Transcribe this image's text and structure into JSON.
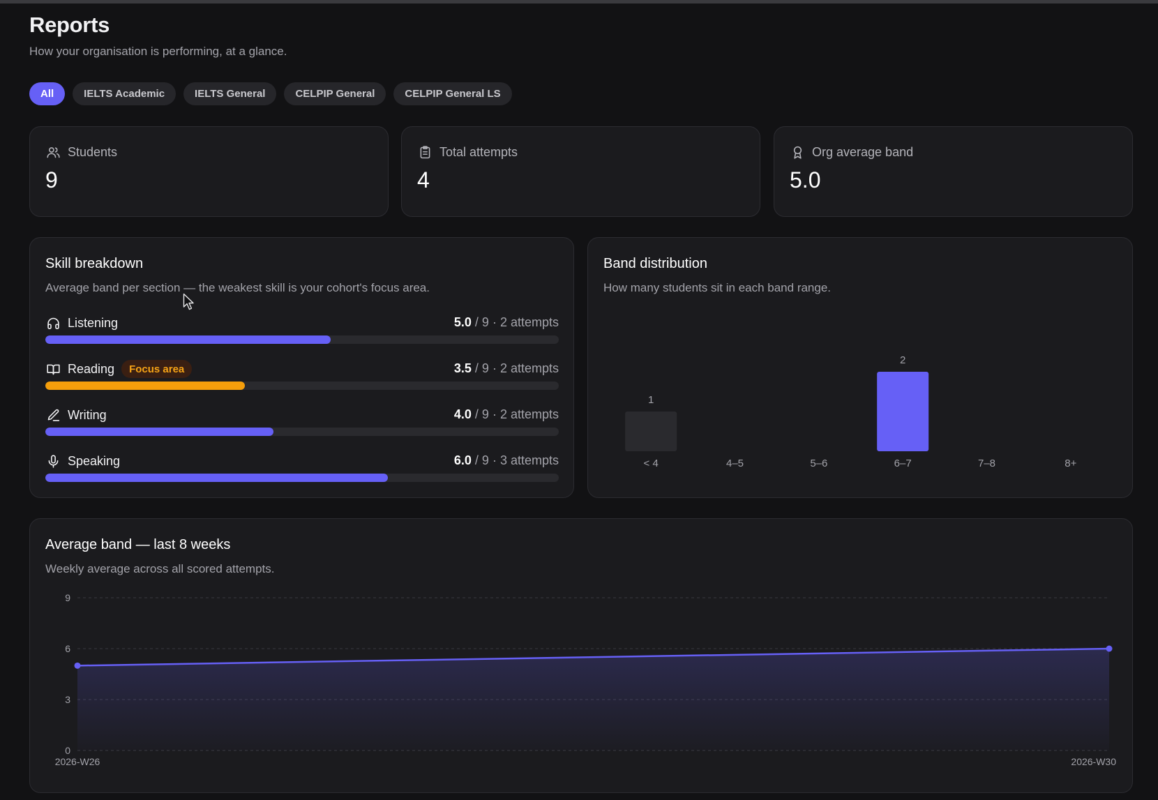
{
  "header": {
    "title": "Reports",
    "subtitle": "How your organisation is performing, at a glance."
  },
  "filters": [
    {
      "label": "All",
      "active": true
    },
    {
      "label": "IELTS Academic",
      "active": false
    },
    {
      "label": "IELTS General",
      "active": false
    },
    {
      "label": "CELPIP General",
      "active": false
    },
    {
      "label": "CELPIP General LS",
      "active": false
    }
  ],
  "stats": [
    {
      "label": "Students",
      "value": "9",
      "icon": "users-icon"
    },
    {
      "label": "Total attempts",
      "value": "4",
      "icon": "clipboard-icon"
    },
    {
      "label": "Org average band",
      "value": "5.0",
      "icon": "award-icon"
    }
  ],
  "skills": {
    "title": "Skill breakdown",
    "description": "Average band per section — the weakest skill is your cohort's focus area.",
    "max_band": 9,
    "items": [
      {
        "name": "Listening",
        "icon": "headphones-icon",
        "score": "5.0",
        "max": "/ 9",
        "attempts": "· 2 attempts",
        "value": 5.0,
        "badge": "",
        "color": "#6660f6"
      },
      {
        "name": "Reading",
        "icon": "book-open-icon",
        "score": "3.5",
        "max": "/ 9",
        "attempts": "· 2 attempts",
        "value": 3.5,
        "badge": "Focus area",
        "color": "#f59e0b"
      },
      {
        "name": "Writing",
        "icon": "pen-icon",
        "score": "4.0",
        "max": "/ 9",
        "attempts": "· 2 attempts",
        "value": 4.0,
        "badge": "",
        "color": "#6660f6"
      },
      {
        "name": "Speaking",
        "icon": "mic-icon",
        "score": "6.0",
        "max": "/ 9",
        "attempts": "· 3 attempts",
        "value": 6.0,
        "badge": "",
        "color": "#6660f6"
      }
    ]
  },
  "band_distribution": {
    "title": "Band distribution",
    "description": "How many students sit in each band range."
  },
  "trend": {
    "title": "Average band — last 8 weeks",
    "description": "Weekly average across all scored attempts."
  },
  "chart_data": [
    {
      "type": "bar",
      "categories": [
        "< 4",
        "4–5",
        "5–6",
        "6–7",
        "7–8",
        "8+"
      ],
      "values": [
        1,
        0,
        0,
        2,
        0,
        0
      ],
      "data_labels": [
        "1",
        "",
        "",
        "2",
        "",
        ""
      ],
      "highlight_category": "6–7",
      "colors": {
        "highlight": "#6660f6",
        "default": "#2a2a2e"
      },
      "grid": false
    },
    {
      "type": "area",
      "x": [
        "2026-W26",
        "2026-W30"
      ],
      "series": [
        {
          "values": [
            5.0,
            6.0
          ]
        }
      ],
      "ylim": [
        0,
        9
      ],
      "yticks": [
        0,
        3,
        6,
        9
      ],
      "xticks": [
        "2026-W26",
        "2026-W30"
      ],
      "grid": true,
      "color": "#6660f6"
    }
  ],
  "colors": {
    "accent": "#6660f6",
    "warning": "#f59e0b",
    "background": "#121214",
    "card": "#1b1b1e"
  }
}
